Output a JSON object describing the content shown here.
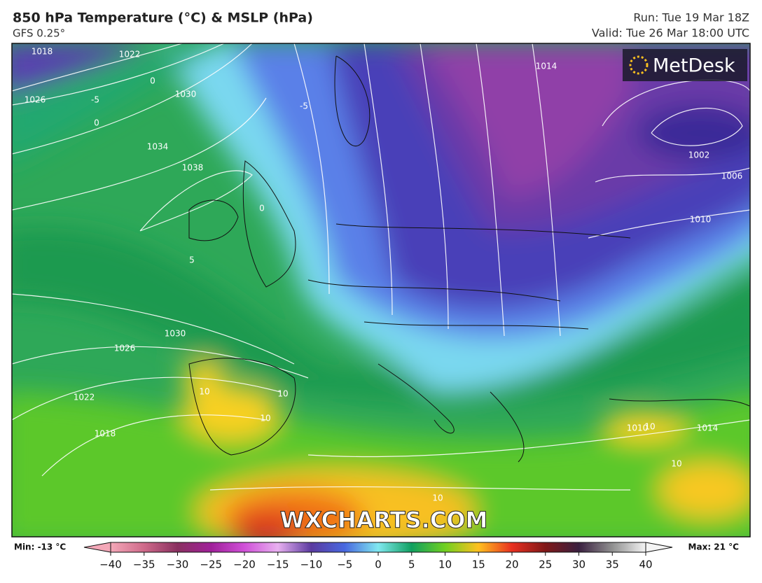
{
  "header": {
    "title": "850 hPa Temperature (°C) & MSLP (hPa)",
    "model": "GFS 0.25°",
    "run": "Run: Tue 19 Mar 18Z",
    "valid": "Valid: Tue 26 Mar 18:00 UTC"
  },
  "logo": "MetDesk",
  "watermark": "WXCHARTS.COM",
  "map_labels": [
    "1018",
    "1022",
    "1026",
    "1030",
    "1034",
    "1038",
    "1030",
    "1026",
    "1022",
    "1018",
    "1014",
    "1002",
    "1006",
    "1010",
    "1014",
    "1010",
    "0",
    "0",
    "-5",
    "-5",
    "5",
    "0",
    "10",
    "10",
    "10",
    "10",
    "10",
    "10"
  ],
  "colorbar": {
    "min_label": "Min: -13 °C",
    "max_label": "Max: 21 °C",
    "range": [
      -40,
      40
    ],
    "ticks": [
      {
        "value": -40,
        "label": "−40"
      },
      {
        "value": -35,
        "label": "−35"
      },
      {
        "value": -30,
        "label": "−30"
      },
      {
        "value": -25,
        "label": "−25"
      },
      {
        "value": -20,
        "label": "−20"
      },
      {
        "value": -15,
        "label": "−15"
      },
      {
        "value": -10,
        "label": "−10"
      },
      {
        "value": -5,
        "label": "−5"
      },
      0,
      5,
      10,
      15,
      20,
      25,
      30,
      35,
      40
    ],
    "colors": [
      "#f4a8b8",
      "#cf6a8a",
      "#8a3060",
      "#a0209a",
      "#d050d8",
      "#e8b0f0",
      "#5a3aa0",
      "#4868e0",
      "#80e8f0",
      "#10a060",
      "#70d020",
      "#ffc020",
      "#e83020",
      "#801818",
      "#3a2040",
      "#909090",
      "#f4f4f4"
    ]
  }
}
